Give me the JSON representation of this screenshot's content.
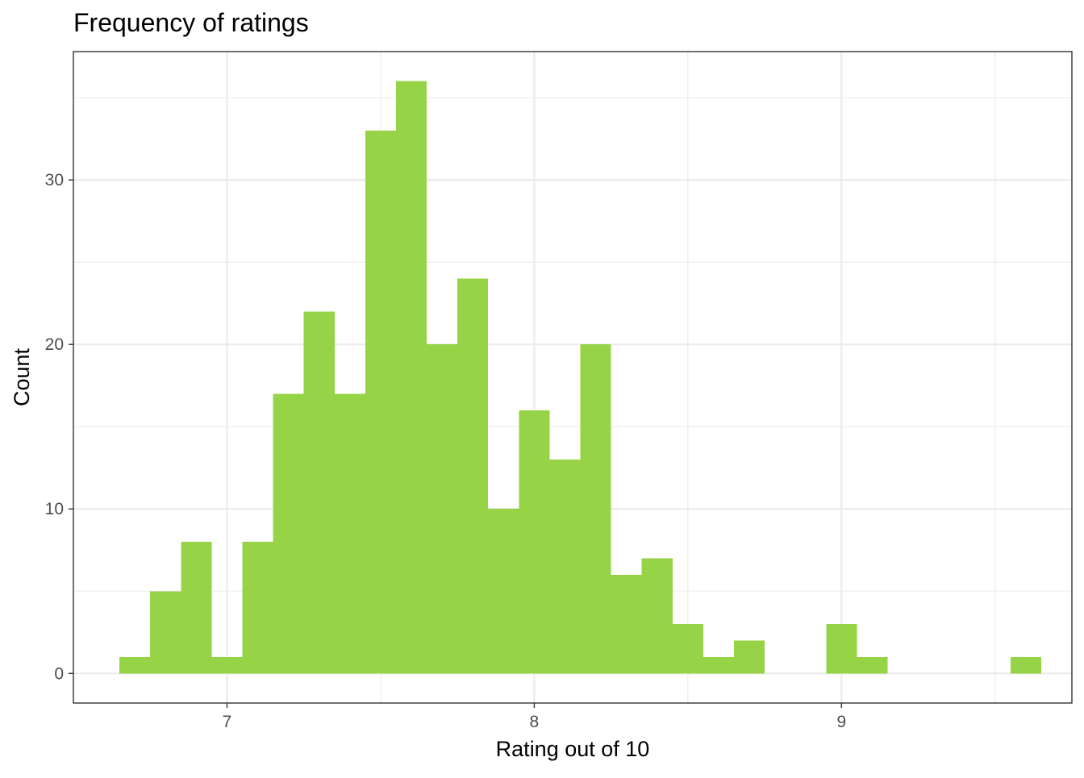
{
  "chart_data": {
    "type": "bar",
    "title": "Frequency of ratings",
    "xlabel": "Rating out of 10",
    "ylabel": "Count",
    "bin_width": 0.1,
    "bins": [
      {
        "x0": 6.65,
        "x1": 6.75,
        "count": 1
      },
      {
        "x0": 6.75,
        "x1": 6.85,
        "count": 5
      },
      {
        "x0": 6.85,
        "x1": 6.95,
        "count": 8
      },
      {
        "x0": 6.95,
        "x1": 7.05,
        "count": 1
      },
      {
        "x0": 7.05,
        "x1": 7.15,
        "count": 8
      },
      {
        "x0": 7.15,
        "x1": 7.25,
        "count": 17
      },
      {
        "x0": 7.25,
        "x1": 7.35,
        "count": 22
      },
      {
        "x0": 7.35,
        "x1": 7.45,
        "count": 17
      },
      {
        "x0": 7.45,
        "x1": 7.55,
        "count": 33
      },
      {
        "x0": 7.55,
        "x1": 7.65,
        "count": 36
      },
      {
        "x0": 7.65,
        "x1": 7.75,
        "count": 20
      },
      {
        "x0": 7.75,
        "x1": 7.85,
        "count": 24
      },
      {
        "x0": 7.85,
        "x1": 7.95,
        "count": 10
      },
      {
        "x0": 7.95,
        "x1": 8.05,
        "count": 16
      },
      {
        "x0": 8.05,
        "x1": 8.15,
        "count": 13
      },
      {
        "x0": 8.15,
        "x1": 8.25,
        "count": 20
      },
      {
        "x0": 8.25,
        "x1": 8.35,
        "count": 6
      },
      {
        "x0": 8.35,
        "x1": 8.45,
        "count": 7
      },
      {
        "x0": 8.45,
        "x1": 8.55,
        "count": 3
      },
      {
        "x0": 8.55,
        "x1": 8.65,
        "count": 1
      },
      {
        "x0": 8.65,
        "x1": 8.75,
        "count": 2
      },
      {
        "x0": 8.75,
        "x1": 8.85,
        "count": 0
      },
      {
        "x0": 8.85,
        "x1": 8.95,
        "count": 0
      },
      {
        "x0": 8.95,
        "x1": 9.05,
        "count": 3
      },
      {
        "x0": 9.05,
        "x1": 9.15,
        "count": 1
      },
      {
        "x0": 9.15,
        "x1": 9.25,
        "count": 0
      },
      {
        "x0": 9.25,
        "x1": 9.35,
        "count": 0
      },
      {
        "x0": 9.35,
        "x1": 9.45,
        "count": 0
      },
      {
        "x0": 9.45,
        "x1": 9.55,
        "count": 0
      },
      {
        "x0": 9.55,
        "x1": 9.65,
        "count": 1
      }
    ],
    "xlim": [
      6.5,
      9.75
    ],
    "ylim": [
      -1.8,
      37.8
    ],
    "x_ticks": [
      7,
      8,
      9
    ],
    "x_tick_labels": [
      "7",
      "8",
      "9"
    ],
    "y_ticks": [
      0,
      10,
      20,
      30
    ],
    "y_tick_labels": [
      "0",
      "10",
      "20",
      "30"
    ],
    "x_minor_gridlines": [
      7.5,
      8.5,
      9.5
    ],
    "y_minor_gridlines": [
      5,
      15,
      25,
      35
    ],
    "grid": true,
    "legend": "none",
    "colors": {
      "bar_fill": "#96d346",
      "panel_background": "#ffffff",
      "grid": "#ebebeb",
      "panel_border": "#333333",
      "tick_text": "#4d4d4d",
      "title_text": "#000000"
    }
  }
}
